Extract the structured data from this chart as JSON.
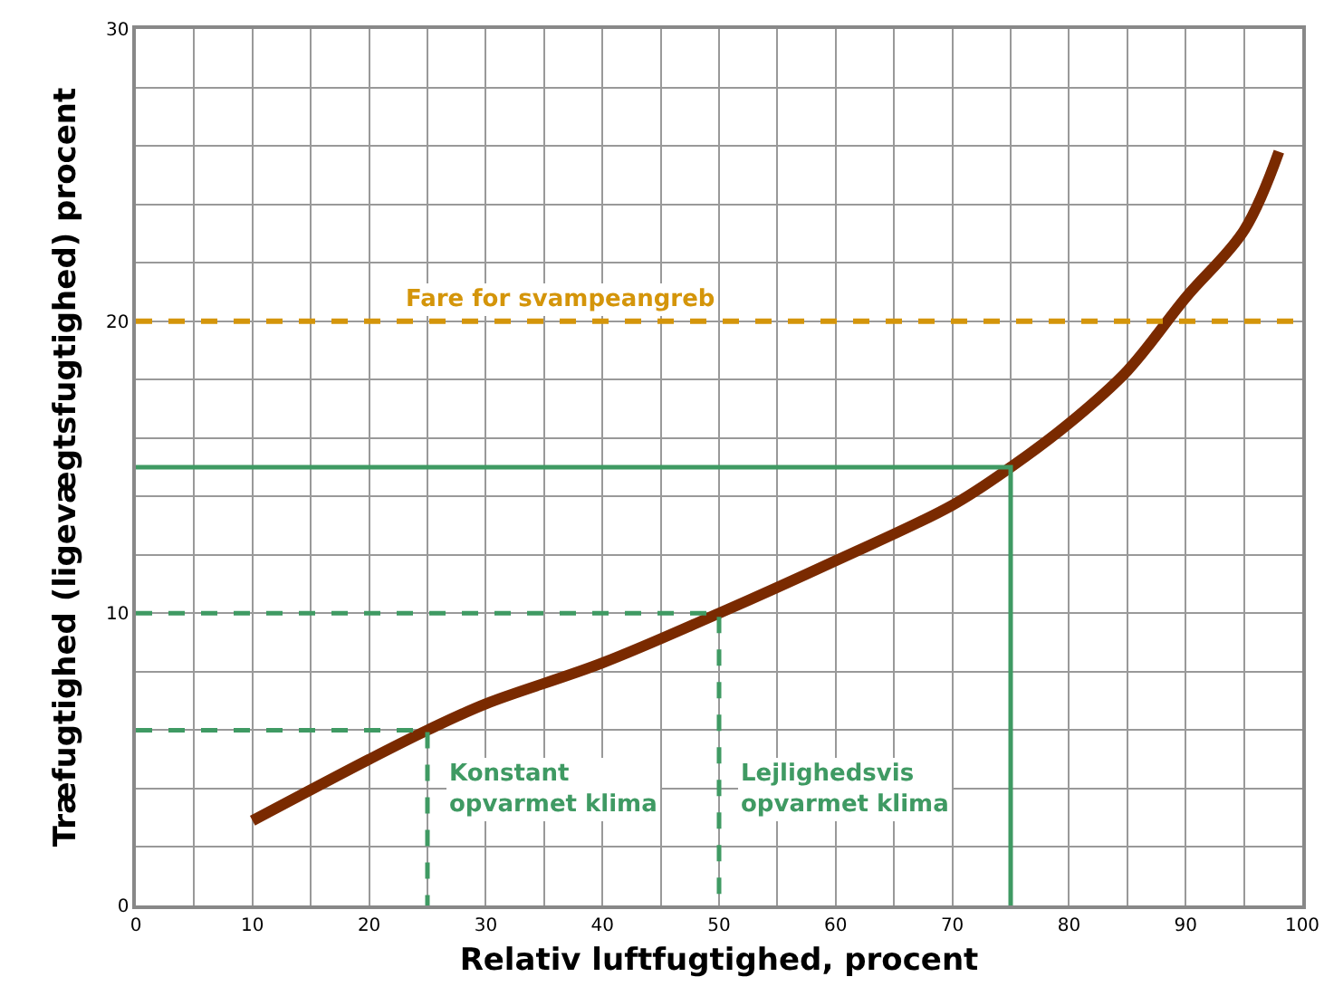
{
  "chart_data": {
    "type": "line",
    "xlabel": "Relativ luftfugtighed, procent",
    "ylabel": "Træfugtighed (ligevægtsfugtighed) procent",
    "xlim": [
      0,
      100
    ],
    "xticks": [
      0,
      {
        "value": 5,
        "label": null
      },
      10,
      {
        "value": 15,
        "label": null
      },
      20,
      {
        "value": 25,
        "label": null
      },
      30,
      {
        "value": 35,
        "label": null
      },
      40,
      {
        "value": 45,
        "label": null
      },
      50,
      {
        "value": 55,
        "label": null
      },
      60,
      {
        "value": 65,
        "label": null
      },
      70,
      {
        "value": 75,
        "label": null
      },
      80,
      {
        "value": 85,
        "label": null
      },
      90,
      {
        "value": 95,
        "label": null
      },
      100
    ],
    "ylim": [
      0,
      30
    ],
    "yticks": [
      0,
      {
        "value": 2,
        "label": null
      },
      {
        "value": 4,
        "label": null
      },
      {
        "value": 6,
        "label": null
      },
      {
        "value": 8,
        "label": null
      },
      10,
      {
        "value": 12,
        "label": null
      },
      {
        "value": 14,
        "label": null
      },
      {
        "value": 16,
        "label": null
      },
      {
        "value": 18,
        "label": null
      },
      20,
      {
        "value": 22,
        "label": null
      },
      {
        "value": 24,
        "label": null
      },
      {
        "value": 26,
        "label": null
      },
      {
        "value": 28,
        "label": null
      },
      30
    ],
    "grid": true,
    "series": [
      {
        "color": "#7a2a00",
        "x": [
          10,
          20,
          25,
          30,
          40,
          50,
          60,
          70,
          75,
          80,
          85,
          90,
          95,
          98
        ],
        "values": [
          2.9,
          5.0,
          6.0,
          6.9,
          8.3,
          10,
          11.8,
          13.7,
          15,
          16.5,
          18.3,
          20.8,
          23.1,
          25.8
        ],
        "line_style": "solid"
      },
      {
        "color": "#3f9a63",
        "x": [
          0,
          75,
          75
        ],
        "values": [
          15,
          15,
          0
        ],
        "line_style": "solid"
      },
      {
        "color": "#3f9a63",
        "x": [
          0,
          50,
          50
        ],
        "values": [
          10,
          10,
          0
        ],
        "line_style": "dashed"
      },
      {
        "color": "#3f9a63",
        "x": [
          0,
          25,
          25
        ],
        "values": [
          6,
          6,
          0
        ],
        "line_style": "dashed"
      }
    ],
    "ref_lines": [
      {
        "axis": "y",
        "value": 20,
        "label": "Fare for svampeangreb",
        "color": "#d4950a",
        "line_style": "dashed"
      }
    ],
    "annotations": [
      "Konstant\nopvarmet klima",
      "Lejlighedsvis\nopvarmet klima"
    ],
    "marker": "none"
  }
}
